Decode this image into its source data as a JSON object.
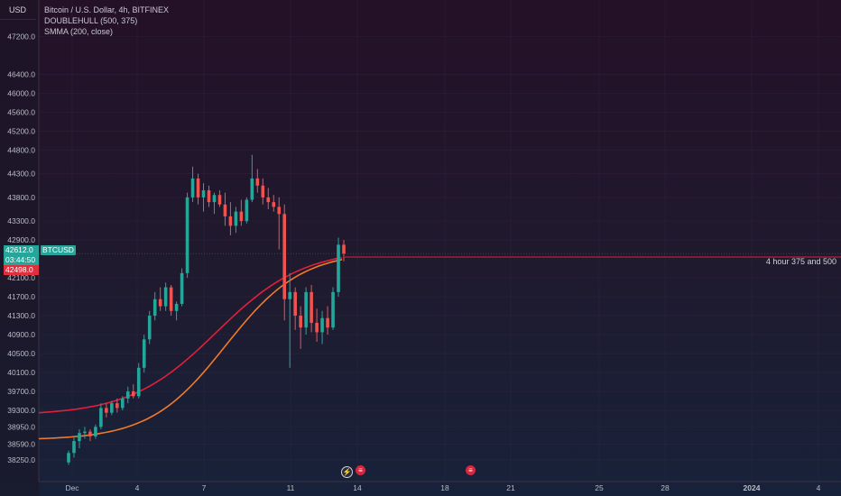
{
  "header": {
    "currency": "USD",
    "title": "Bitcoin / U.S. Dollar, 4h, BITFINEX",
    "indicator_1": "DOUBLEHULL (500, 375)",
    "indicator_2": "SMMA (200, close)"
  },
  "price_tags": {
    "last_price": "42612.0",
    "countdown": "03:44:50",
    "symbol": "BTCUSD",
    "smma_value": "42498.0"
  },
  "line_note": "4 hour 375 and 500",
  "colors": {
    "up": "#26a69a",
    "down": "#ef5350",
    "hull": "#e0203a",
    "smma": "#f07a2a",
    "grid": "#3a2a48"
  },
  "events": [
    "flash-icon",
    "economic-flag-icon",
    "economic-flag-icon"
  ],
  "chart_data": {
    "type": "candlestick",
    "title": "Bitcoin / U.S. Dollar, 4h, BITFINEX",
    "y_ticks": [
      47200.0,
      46400.0,
      46000.0,
      45600.0,
      45200.0,
      44800.0,
      44300.0,
      43800.0,
      43300.0,
      42900.0,
      42100.0,
      41700.0,
      41300.0,
      40900.0,
      40500.0,
      40100.0,
      39700.0,
      39300.0,
      38950.0,
      38590.0,
      38250.0
    ],
    "y_tick_labels": [
      "47200.0",
      "46400.0",
      "46000.0",
      "45600.0",
      "45200.0",
      "44800.0",
      "44300.0",
      "43800.0",
      "43300.0",
      "42900.0",
      "42100.0",
      "41700.0",
      "41300.0",
      "40900.0",
      "40500.0",
      "40100.0",
      "39700.0",
      "39300.0",
      "38950.0",
      "38590.0",
      "38250.0"
    ],
    "x_tick_labels": [
      "Dec",
      "4",
      "7",
      "11",
      "14",
      "18",
      "21",
      "25",
      "28",
      "2024",
      "4"
    ],
    "ylim": [
      38150,
      47500
    ],
    "last_price": 42612.0,
    "horizontal_line_value": 42540,
    "candle_ohlc": [
      [
        38200,
        38450,
        38150,
        38400
      ],
      [
        38400,
        38750,
        38300,
        38650
      ],
      [
        38650,
        38900,
        38500,
        38820
      ],
      [
        38820,
        38950,
        38700,
        38850
      ],
      [
        38850,
        38900,
        38650,
        38750
      ],
      [
        38750,
        39000,
        38700,
        38950
      ],
      [
        38950,
        39450,
        38900,
        39350
      ],
      [
        39350,
        39450,
        39150,
        39250
      ],
      [
        39250,
        39500,
        39200,
        39450
      ],
      [
        39450,
        39550,
        39250,
        39350
      ],
      [
        39350,
        39600,
        39300,
        39550
      ],
      [
        39550,
        39800,
        39450,
        39700
      ],
      [
        39700,
        39850,
        39550,
        39600
      ],
      [
        39600,
        40300,
        39550,
        40200
      ],
      [
        40200,
        40900,
        40100,
        40800
      ],
      [
        40800,
        41400,
        40700,
        41300
      ],
      [
        41300,
        41800,
        41200,
        41650
      ],
      [
        41650,
        41900,
        41400,
        41500
      ],
      [
        41500,
        42000,
        41400,
        41900
      ],
      [
        41900,
        41950,
        41300,
        41400
      ],
      [
        41400,
        41600,
        41200,
        41550
      ],
      [
        41550,
        42300,
        41500,
        42200
      ],
      [
        42200,
        43900,
        42100,
        43800
      ],
      [
        43800,
        44450,
        43700,
        44200
      ],
      [
        44200,
        44300,
        43650,
        43800
      ],
      [
        43800,
        44100,
        43500,
        43950
      ],
      [
        43950,
        44050,
        43600,
        43700
      ],
      [
        43700,
        43900,
        43450,
        43850
      ],
      [
        43850,
        43950,
        43600,
        43650
      ],
      [
        43650,
        43900,
        43200,
        43400
      ],
      [
        43400,
        43700,
        43000,
        43200
      ],
      [
        43200,
        43600,
        43050,
        43500
      ],
      [
        43500,
        43750,
        43200,
        43300
      ],
      [
        43300,
        43800,
        43250,
        43750
      ],
      [
        43750,
        44700,
        43700,
        44200
      ],
      [
        44200,
        44400,
        43900,
        44050
      ],
      [
        44050,
        44200,
        43650,
        43800
      ],
      [
        43800,
        44000,
        43550,
        43700
      ],
      [
        43700,
        43850,
        43500,
        43600
      ],
      [
        43600,
        43800,
        42700,
        43450
      ],
      [
        43450,
        43650,
        41200,
        41650
      ],
      [
        41650,
        42200,
        40200,
        41800
      ],
      [
        41800,
        41900,
        41000,
        41300
      ],
      [
        41300,
        41500,
        40600,
        41050
      ],
      [
        41050,
        41900,
        40900,
        41800
      ],
      [
        41800,
        41950,
        40950,
        41150
      ],
      [
        41150,
        41450,
        40750,
        40950
      ],
      [
        40950,
        41400,
        40700,
        41250
      ],
      [
        41250,
        41500,
        40900,
        41050
      ],
      [
        41050,
        41900,
        41000,
        41800
      ],
      [
        41800,
        42950,
        41700,
        42800
      ],
      [
        42800,
        42900,
        42450,
        42612
      ]
    ],
    "series": [
      {
        "values_start": 39250,
        "values_end": 42540,
        "color": "#e0203a"
      },
      {
        "values_start": 38700,
        "values_end": 42498,
        "color": "#f07a2a"
      }
    ]
  }
}
